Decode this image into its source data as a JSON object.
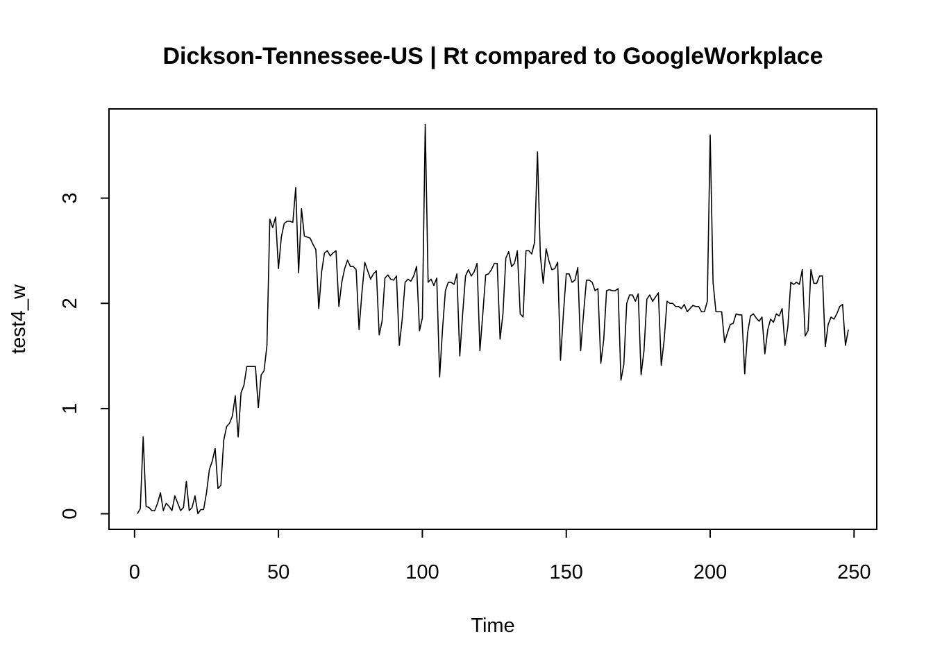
{
  "chart_data": {
    "type": "line",
    "title": "Dickson-Tennessee-US | Rt compared to GoogleWorkplace",
    "xlabel": "Time",
    "ylabel": "test4_w",
    "x": [
      1,
      2,
      3,
      4,
      5,
      6,
      7,
      8,
      9,
      10,
      11,
      12,
      13,
      14,
      15,
      16,
      17,
      18,
      19,
      20,
      21,
      22,
      23,
      24,
      25,
      26,
      27,
      28,
      29,
      30,
      31,
      32,
      33,
      34,
      35,
      36,
      37,
      38,
      39,
      40,
      41,
      42,
      43,
      44,
      45,
      46,
      47,
      48,
      49,
      50,
      51,
      52,
      53,
      54,
      55,
      56,
      57,
      58,
      59,
      60,
      61,
      62,
      63,
      64,
      65,
      66,
      67,
      68,
      69,
      70,
      71,
      72,
      73,
      74,
      75,
      76,
      77,
      78,
      79,
      80,
      81,
      82,
      83,
      84,
      85,
      86,
      87,
      88,
      89,
      90,
      91,
      92,
      93,
      94,
      95,
      96,
      97,
      98,
      99,
      100,
      101,
      102,
      103,
      104,
      105,
      106,
      107,
      108,
      109,
      110,
      111,
      112,
      113,
      114,
      115,
      116,
      117,
      118,
      119,
      120,
      121,
      122,
      123,
      124,
      125,
      126,
      127,
      128,
      129,
      130,
      131,
      132,
      133,
      134,
      135,
      136,
      137,
      138,
      139,
      140,
      141,
      142,
      143,
      144,
      145,
      146,
      147,
      148,
      149,
      150,
      151,
      152,
      153,
      154,
      155,
      156,
      157,
      158,
      159,
      160,
      161,
      162,
      163,
      164,
      165,
      166,
      167,
      168,
      169,
      170,
      171,
      172,
      173,
      174,
      175,
      176,
      177,
      178,
      179,
      180,
      181,
      182,
      183,
      184,
      185,
      186,
      187,
      188,
      189,
      190,
      191,
      192,
      193,
      194,
      195,
      196,
      197,
      198,
      199,
      200,
      201,
      202,
      203,
      204,
      205,
      206,
      207,
      208,
      209,
      210,
      211,
      212,
      213,
      214,
      215,
      216,
      217,
      218,
      219,
      220,
      221,
      222,
      223,
      224,
      225,
      226,
      227,
      228,
      229,
      230,
      231,
      232,
      233,
      234,
      235,
      236,
      237,
      238,
      239,
      240,
      241,
      242,
      243,
      244,
      245,
      246,
      247,
      248
    ],
    "series": [
      {
        "name": "test4_w",
        "color": "#000000",
        "values": [
          0,
          0.05,
          0.73,
          0.07,
          0.06,
          0.03,
          0.03,
          0.1,
          0.2,
          0.03,
          0.1,
          0.07,
          0.03,
          0.17,
          0.1,
          0.03,
          0.06,
          0.31,
          0.03,
          0.06,
          0.17,
          0,
          0.04,
          0.04,
          0.2,
          0.42,
          0.5,
          0.62,
          0.24,
          0.27,
          0.7,
          0.83,
          0.86,
          0.93,
          1.12,
          0.73,
          1.15,
          1.22,
          1.4,
          1.4,
          1.4,
          1.4,
          1.01,
          1.32,
          1.36,
          1.6,
          2.8,
          2.72,
          2.82,
          2.33,
          2.63,
          2.76,
          2.78,
          2.78,
          2.77,
          3.1,
          2.29,
          2.9,
          2.64,
          2.63,
          2.62,
          2.56,
          2.51,
          1.95,
          2.3,
          2.48,
          2.5,
          2.45,
          2.48,
          2.5,
          1.97,
          2.2,
          2.33,
          2.41,
          2.35,
          2.35,
          2.32,
          1.75,
          2.1,
          2.39,
          2.31,
          2.23,
          2.28,
          2.31,
          1.7,
          1.83,
          2.24,
          2.27,
          2.23,
          2.22,
          2.26,
          1.6,
          1.85,
          2.2,
          2.23,
          2.21,
          2.26,
          2.35,
          1.74,
          1.86,
          3.7,
          2.2,
          2.23,
          2.17,
          2.24,
          1.3,
          1.75,
          2.12,
          2.2,
          2.2,
          2.18,
          2.28,
          1.5,
          1.9,
          2.26,
          2.32,
          2.26,
          2.3,
          2.38,
          1.55,
          1.9,
          2.27,
          2.28,
          2.32,
          2.38,
          2.38,
          1.66,
          1.9,
          2.43,
          2.49,
          2.35,
          2.38,
          2.5,
          1.9,
          1.87,
          2.5,
          2.5,
          2.47,
          2.58,
          3.44,
          2.45,
          2.19,
          2.52,
          2.4,
          2.32,
          2.33,
          2.39,
          1.46,
          1.9,
          2.28,
          2.28,
          2.2,
          2.22,
          2.34,
          1.55,
          1.9,
          2.22,
          2.22,
          2.2,
          2.12,
          2.14,
          1.43,
          1.65,
          2.12,
          2.13,
          2.12,
          2.12,
          2.14,
          1.27,
          1.42,
          2.0,
          2.08,
          2.08,
          2.02,
          2.09,
          1.32,
          1.55,
          2.04,
          2.08,
          2.02,
          2.06,
          2.1,
          1.41,
          1.65,
          2.02,
          2.0,
          2.0,
          1.97,
          1.97,
          1.95,
          1.99,
          1.92,
          1.95,
          1.98,
          1.97,
          1.97,
          1.92,
          1.92,
          2.02,
          3.6,
          2.2,
          1.92,
          1.92,
          1.92,
          1.63,
          1.72,
          1.8,
          1.81,
          1.9,
          1.89,
          1.89,
          1.33,
          1.72,
          1.88,
          1.9,
          1.86,
          1.83,
          1.87,
          1.52,
          1.75,
          1.85,
          1.82,
          1.9,
          1.88,
          1.95,
          1.6,
          1.78,
          2.2,
          2.18,
          2.2,
          2.18,
          2.32,
          1.69,
          1.74,
          2.32,
          2.19,
          2.19,
          2.26,
          2.26,
          1.59,
          1.8,
          1.87,
          1.85,
          1.9,
          1.97,
          1.99,
          1.6,
          1.75
        ]
      }
    ],
    "xlim": [
      -8.88,
      257.88
    ],
    "xticks": [
      0,
      50,
      100,
      150,
      200,
      250
    ],
    "ylim": [
      -0.148,
      3.848
    ],
    "yticks": [
      0,
      1,
      2,
      3
    ],
    "grid": false
  }
}
